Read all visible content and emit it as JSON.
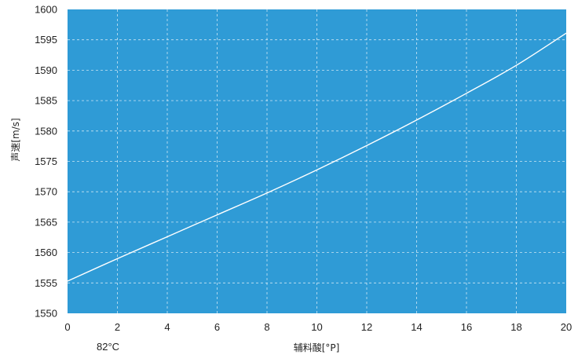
{
  "chart_data": {
    "type": "line",
    "title": "",
    "xlabel": "辅料酸[°P]",
    "ylabel": "声速[m/s]",
    "annotation": "82°C",
    "xlim": [
      0,
      20
    ],
    "ylim": [
      1550,
      1600
    ],
    "xticks": [
      0,
      2,
      4,
      6,
      8,
      10,
      12,
      14,
      16,
      18,
      20
    ],
    "yticks": [
      1550,
      1555,
      1560,
      1565,
      1570,
      1575,
      1580,
      1585,
      1590,
      1595,
      1600
    ],
    "grid": true,
    "plot_background": "#2f9bd6",
    "line_color": "#ffffff",
    "series": [
      {
        "x": [
          0,
          2,
          4,
          6,
          8,
          10,
          12,
          14,
          16,
          18,
          20
        ],
        "y": [
          1555.3,
          1559.0,
          1562.6,
          1566.2,
          1569.8,
          1573.6,
          1577.6,
          1581.8,
          1586.2,
          1590.8,
          1596.1
        ]
      }
    ]
  }
}
